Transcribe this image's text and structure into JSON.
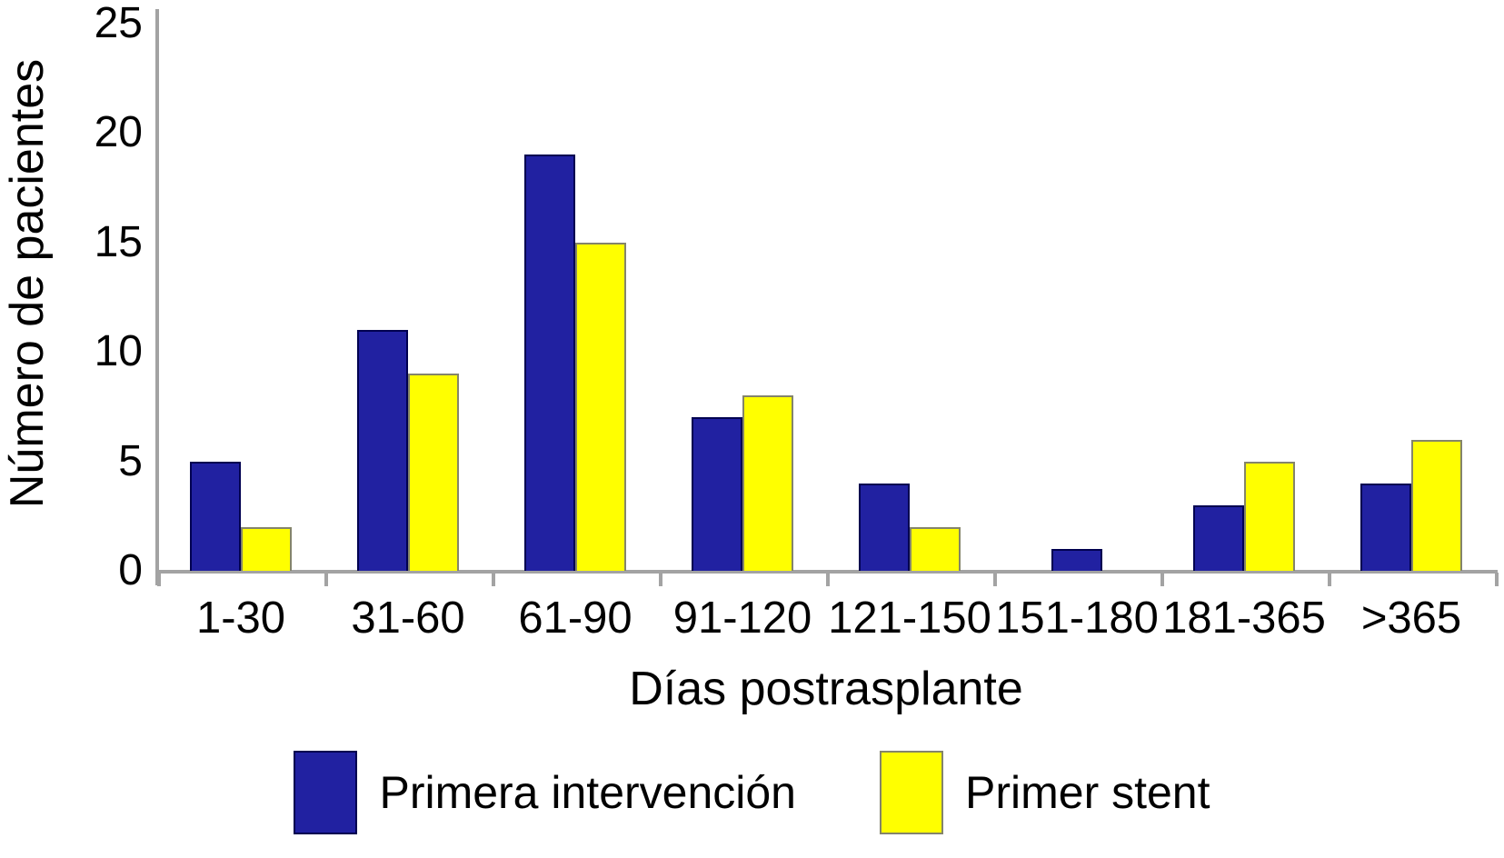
{
  "chart_data": {
    "type": "bar",
    "categories": [
      "1-30",
      "31-60",
      "61-90",
      "91-120",
      "121-150",
      "151-180",
      "181-365",
      ">365"
    ],
    "series": [
      {
        "name": "Primera intervención",
        "color": "#2121A1",
        "border_color": "#000050",
        "values": [
          5,
          11,
          19,
          7,
          4,
          1,
          3,
          4
        ]
      },
      {
        "name": "Primer stent",
        "color": "#FFFF00",
        "border_color": "#84846A",
        "values": [
          2,
          9,
          15,
          8,
          2,
          0,
          5,
          6
        ]
      }
    ],
    "xlabel": "Días postrasplante",
    "ylabel": "Número de pacientes",
    "ylim": [
      0,
      25
    ],
    "y_ticks": [
      0,
      5,
      10,
      15,
      20,
      25
    ],
    "grid": false,
    "legend_position": "bottom",
    "axis_color": "#A3A3A3",
    "text_color": "#000000"
  }
}
